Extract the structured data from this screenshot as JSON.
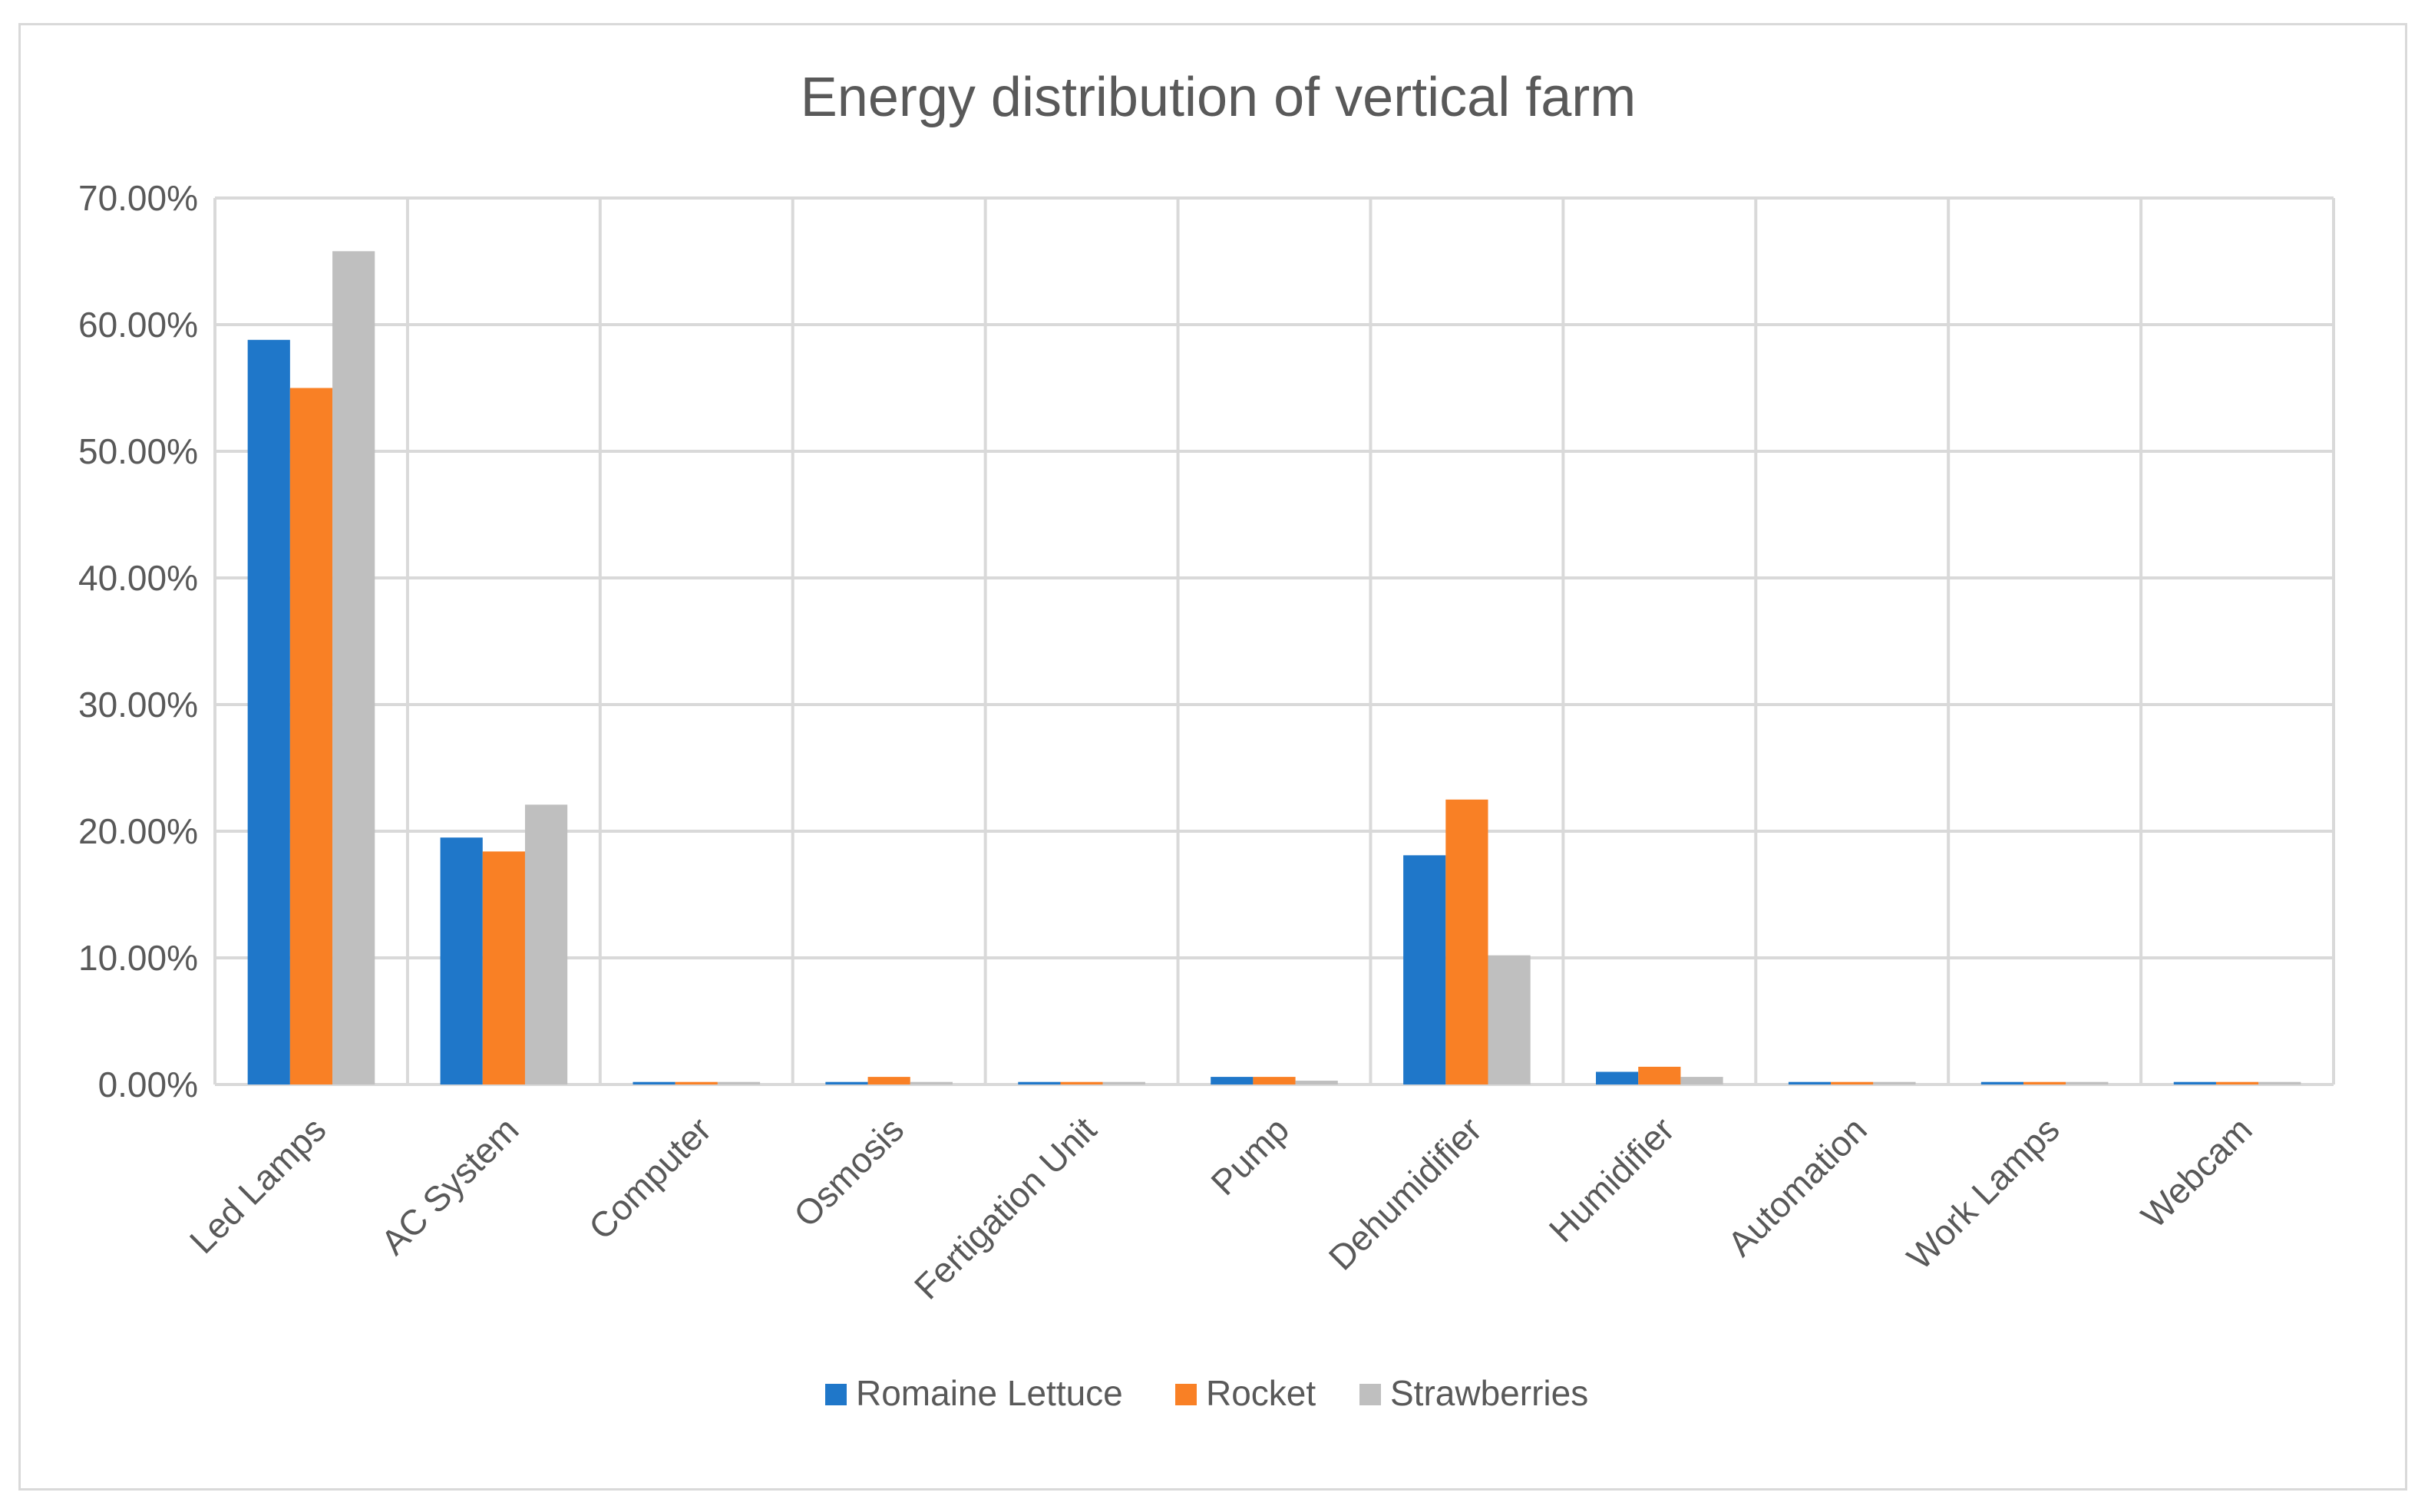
{
  "chart_data": {
    "type": "bar",
    "title": "Energy distribution of vertical farm",
    "xlabel": "",
    "ylabel": "",
    "ylim": [
      0,
      70
    ],
    "y_ticks": [
      "0.00%",
      "10.00%",
      "20.00%",
      "30.00%",
      "40.00%",
      "50.00%",
      "60.00%",
      "70.00%"
    ],
    "categories": [
      "Led Lamps",
      "AC System",
      "Computer",
      "Osmosis",
      "Fertigation Unit",
      "Pump",
      "Dehumidifier",
      "Humidifier",
      "Automation",
      "Work Lamps",
      "Webcam"
    ],
    "series": [
      {
        "name": "Romaine Lettuce",
        "color": "#1f77c9",
        "values": [
          58.8,
          19.5,
          0.2,
          0.2,
          0.2,
          0.6,
          18.1,
          1.0,
          0.2,
          0.2,
          0.2
        ]
      },
      {
        "name": "Rocket",
        "color": "#f98025",
        "values": [
          55.0,
          18.4,
          0.2,
          0.6,
          0.2,
          0.6,
          22.5,
          1.4,
          0.2,
          0.2,
          0.2
        ]
      },
      {
        "name": "Strawberries",
        "color": "#bfbfbf",
        "values": [
          65.8,
          22.1,
          0.2,
          0.2,
          0.2,
          0.3,
          10.2,
          0.6,
          0.2,
          0.2,
          0.2
        ]
      }
    ],
    "grid": true,
    "legend_position": "bottom"
  }
}
